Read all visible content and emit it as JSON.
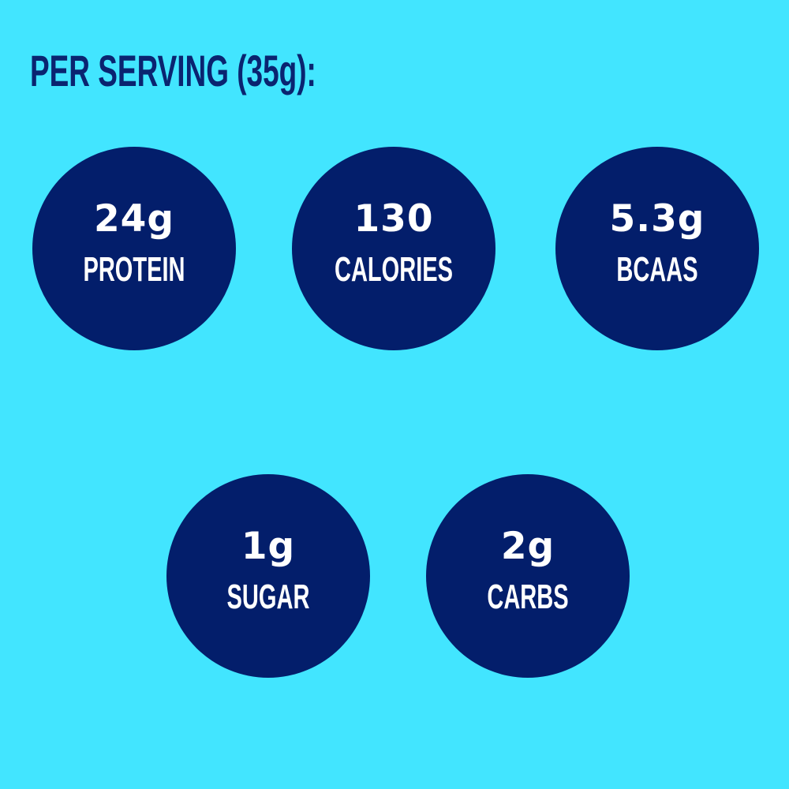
{
  "title": "PER SERVING (35g):",
  "colors": {
    "background": "#42E5FF",
    "circle": "#031E6B",
    "title": "#0A2470",
    "text": "#FFFFFF"
  },
  "stats": [
    {
      "value": "24g",
      "label": "PROTEIN"
    },
    {
      "value": "130",
      "label": "CALORIES"
    },
    {
      "value": "5.3g",
      "label": "BCAAS"
    },
    {
      "value": "1g",
      "label": "SUGAR"
    },
    {
      "value": "2g",
      "label": "CARBS"
    }
  ]
}
